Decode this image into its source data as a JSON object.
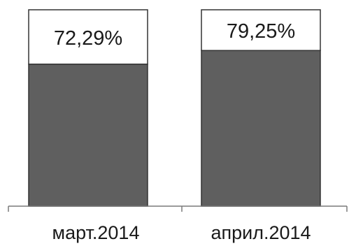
{
  "chart_data": {
    "type": "bar",
    "categories": [
      "март.2014",
      "април.2014"
    ],
    "values": [
      72.29,
      79.25
    ],
    "value_labels": [
      "72,29%",
      "79,25%"
    ],
    "ylim": [
      0,
      100
    ],
    "legend": "none",
    "grid": false,
    "colors": {
      "fill": "#5f5f5f",
      "remainder": "#ffffff",
      "outline": "#333333"
    }
  }
}
